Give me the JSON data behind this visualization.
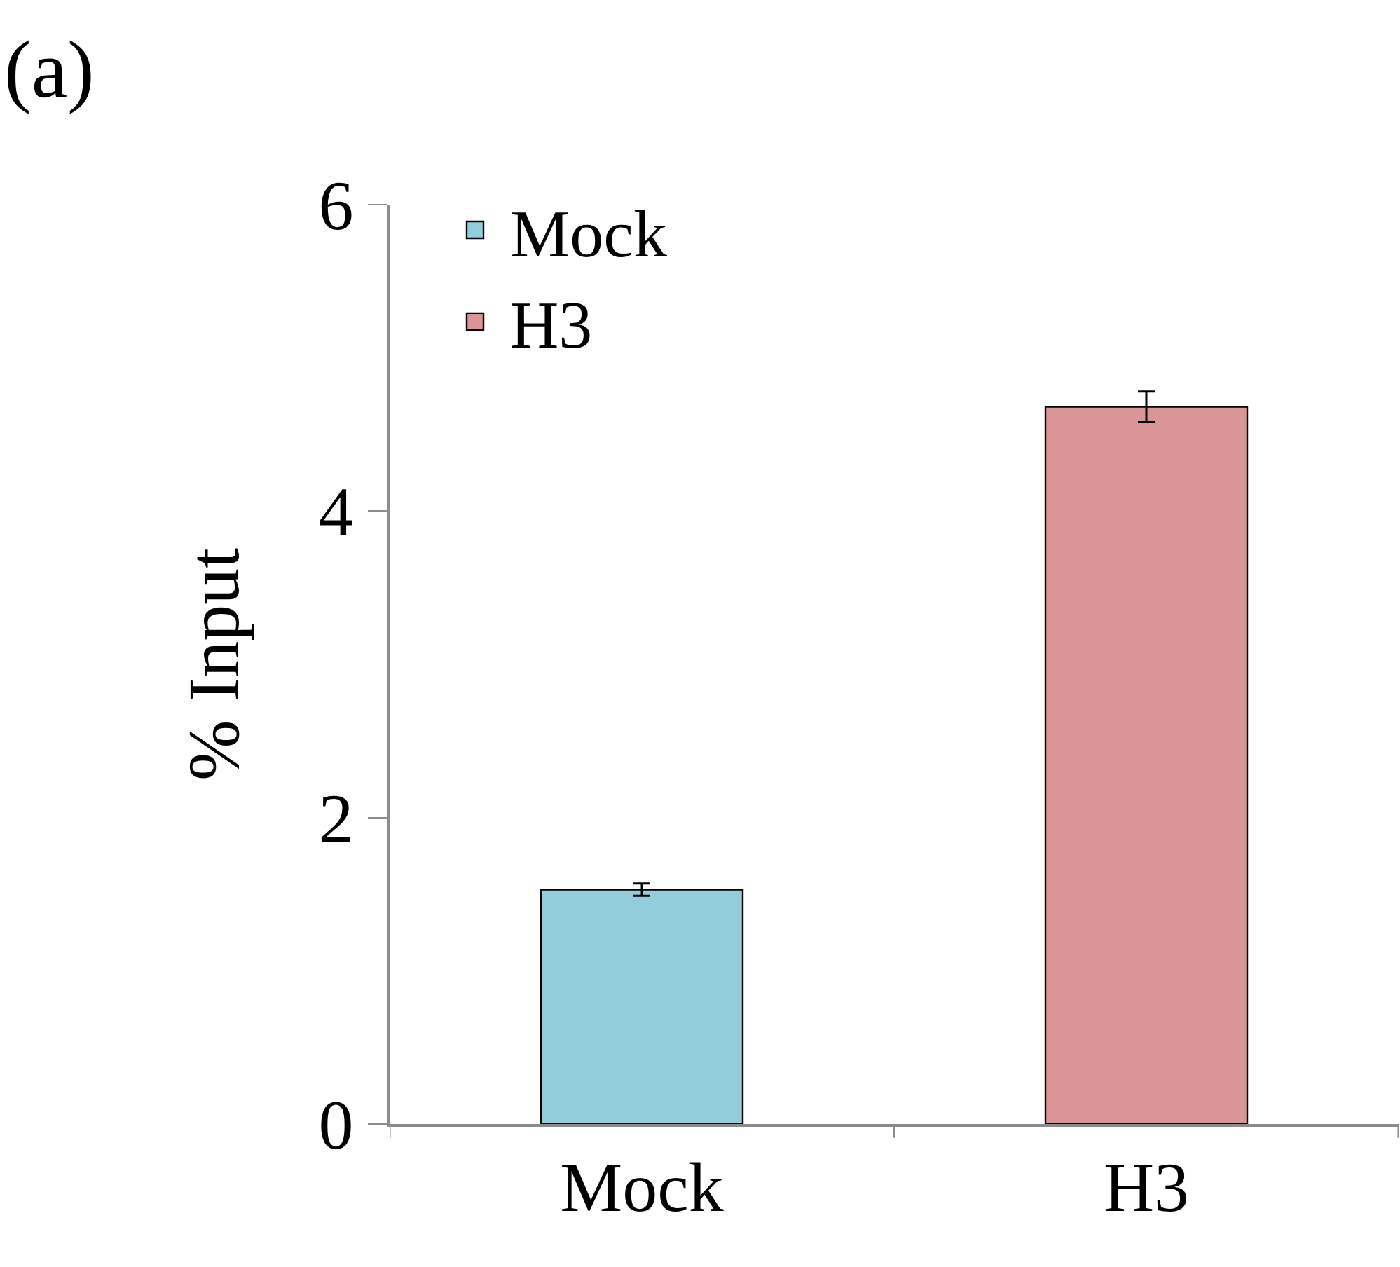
{
  "chart_data": {
    "type": "bar",
    "ylabel": "% Input",
    "annotations": [
      "(a)"
    ],
    "categories": [
      "Mock",
      "H3"
    ],
    "series": [
      {
        "name": "Mock",
        "color": "#92cddc",
        "values": [
          1.53,
          null
        ],
        "errors": [
          0.04,
          null
        ]
      },
      {
        "name": "H3",
        "color": "#d99694",
        "values": [
          null,
          4.68
        ],
        "errors": [
          null,
          0.1
        ]
      }
    ],
    "ylim": [
      0,
      6
    ],
    "yticks": [
      0,
      2,
      4,
      6
    ],
    "legend": "top left"
  }
}
